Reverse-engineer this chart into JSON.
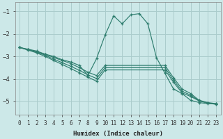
{
  "xlabel": "Humidex (Indice chaleur)",
  "background_color": "#cce8e8",
  "grid_color": "#aacccc",
  "line_color": "#2e7d6e",
  "xlim": [
    -0.5,
    23.5
  ],
  "ylim": [
    -5.6,
    -0.6
  ],
  "yticks": [
    -5,
    -4,
    -3,
    -2,
    -1
  ],
  "xticks": [
    0,
    1,
    2,
    3,
    4,
    5,
    6,
    7,
    8,
    9,
    10,
    11,
    12,
    13,
    14,
    15,
    16,
    17,
    18,
    19,
    20,
    21,
    22,
    23
  ],
  "series": [
    {
      "x": [
        0,
        1,
        2,
        3,
        4,
        5,
        6,
        7,
        8,
        9,
        10,
        11,
        12,
        13,
        14,
        15,
        16,
        17,
        18,
        19,
        20,
        21,
        22,
        23
      ],
      "y": [
        -2.6,
        -2.7,
        -2.8,
        -2.9,
        -3.0,
        -3.15,
        -3.25,
        -3.4,
        -3.85,
        -3.1,
        -2.05,
        -1.2,
        -1.55,
        -1.15,
        -1.1,
        -1.55,
        -3.05,
        -3.75,
        -4.45,
        -4.65,
        -4.95,
        -5.05,
        -5.1,
        -5.1
      ]
    },
    {
      "x": [
        0,
        1,
        2,
        3,
        4,
        5,
        6,
        7,
        8,
        9,
        10,
        17,
        18,
        19,
        20,
        21,
        22,
        23
      ],
      "y": [
        -2.6,
        -2.68,
        -2.76,
        -2.9,
        -3.05,
        -3.18,
        -3.32,
        -3.5,
        -3.7,
        -3.85,
        -3.4,
        -3.4,
        -3.95,
        -4.45,
        -4.65,
        -4.95,
        -5.05,
        -5.1
      ]
    },
    {
      "x": [
        0,
        1,
        2,
        3,
        4,
        5,
        6,
        7,
        8,
        9,
        10,
        17,
        18,
        19,
        20,
        21,
        22,
        23
      ],
      "y": [
        -2.6,
        -2.7,
        -2.8,
        -2.95,
        -3.12,
        -3.28,
        -3.44,
        -3.62,
        -3.82,
        -3.98,
        -3.5,
        -3.5,
        -4.05,
        -4.55,
        -4.72,
        -4.97,
        -5.07,
        -5.12
      ]
    },
    {
      "x": [
        0,
        1,
        2,
        3,
        4,
        5,
        6,
        7,
        8,
        9,
        10,
        17,
        18,
        19,
        20,
        21,
        22,
        23
      ],
      "y": [
        -2.6,
        -2.72,
        -2.84,
        -3.0,
        -3.18,
        -3.36,
        -3.54,
        -3.73,
        -3.92,
        -4.1,
        -3.6,
        -3.6,
        -4.15,
        -4.62,
        -4.78,
        -4.98,
        -5.08,
        -5.13
      ]
    }
  ]
}
